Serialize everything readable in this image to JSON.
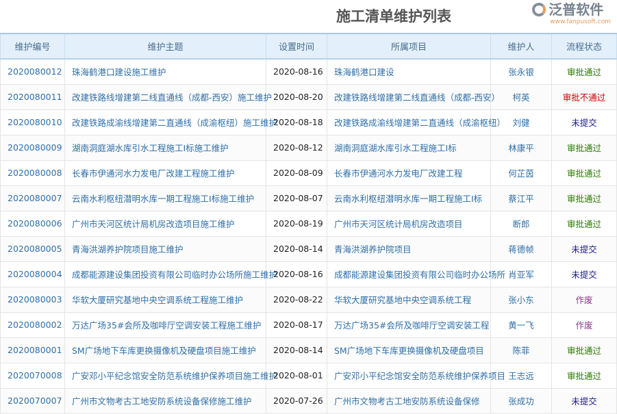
{
  "title": "施工清单维护列表",
  "columns": [
    "维护编号",
    "维护主题",
    "设置时间",
    "所属项目",
    "维护人",
    "流程状态"
  ],
  "status_colors": {
    "审批通过": "#2a7a00",
    "审批不通过": "#d00000",
    "未提交": "#1a1a8c",
    "作废": "#8b3a8b"
  },
  "rows": [
    {
      "id": "2020080012",
      "topic": "珠海鹤港口建设施工维护",
      "date": "2020-08-16",
      "project": "珠海鹤港口建设",
      "person": "张永银",
      "status": "审批通过"
    },
    {
      "id": "2020080011",
      "topic": "改建铁路线增建第二线直通线（成都-西安）施工维护",
      "date": "2020-08-20",
      "project": "改建铁路线增建第二线直通线（成都-西安）",
      "person": "柯英",
      "status": "审批不通过"
    },
    {
      "id": "2020080010",
      "topic": "改建铁路成渝线增建第二直通线（成渝枢纽）施工维护",
      "date": "2020-08-18",
      "project": "改建铁路成渝线增建第二直通线（成渝枢纽）",
      "person": "刘健",
      "status": "未提交"
    },
    {
      "id": "2020080009",
      "topic": "湖南洞庭湖水库引水工程施工I标施工维护",
      "date": "2020-08-12",
      "project": "湖南洞庭湖水库引水工程施工I标",
      "person": "林康平",
      "status": "审批通过"
    },
    {
      "id": "2020080008",
      "topic": "长春市伊通河水力发电厂改建工程施工维护",
      "date": "2020-08-09",
      "project": "长春市伊通河水力发电厂改建工程",
      "person": "何芷茵",
      "status": "审批通过"
    },
    {
      "id": "2020080007",
      "topic": "云南水利枢纽潜明水库一期工程施工I标施工维护",
      "date": "2020-08-07",
      "project": "云南水利枢纽潜明水库一期工程施工I标",
      "person": "蔡江平",
      "status": "审批通过"
    },
    {
      "id": "2020080006",
      "topic": "广州市天河区统计局机房改造项目施工维护",
      "date": "2020-08-19",
      "project": "广州市天河区统计局机房改造项目",
      "person": "断郎",
      "status": "审批通过"
    },
    {
      "id": "2020080005",
      "topic": "青海洪湖养护院项目施工维护",
      "date": "2020-08-14",
      "project": "青海洪湖养护院项目",
      "person": "蒋德帧",
      "status": "未提交"
    },
    {
      "id": "2020080004",
      "topic": "成都能源建设集团投资有限公司临时办公场所施工维护",
      "date": "2020-08-16",
      "project": "成都能源建设集团投资有限公司临时办公场所",
      "person": "肖亚军",
      "status": "未提交"
    },
    {
      "id": "2020080003",
      "topic": "华软大厦研究基地中央空调系统工程施工维护",
      "date": "2020-08-22",
      "project": "华软大厦研究基地中央空调系统工程",
      "person": "张小东",
      "status": "作废"
    },
    {
      "id": "2020080002",
      "topic": "万达广场35#会所及咖啡厅空调安装工程施工维护",
      "date": "2020-08-17",
      "project": "万达广场35#会所及咖啡厅空调安装工程",
      "person": "黄一飞",
      "status": "作废"
    },
    {
      "id": "2020080001",
      "topic": "SM广场地下车库更换摄像机及硬盘项目施工维护",
      "date": "2020-08-14",
      "project": "SM广场地下车库更换摄像机及硬盘项目",
      "person": "陈菲",
      "status": "审批通过"
    },
    {
      "id": "2020070008",
      "topic": "广安邓小平纪念馆安全防范系统维护保养项目施工维护",
      "date": "2020-08-01",
      "project": "广安邓小平纪念馆安全防范系统维护保养项目",
      "person": "王志远",
      "status": "审批通过"
    },
    {
      "id": "2020070007",
      "topic": "广州市文物考古工地安防系统设备保修施工维护",
      "date": "2020-07-26",
      "project": "广州市文物考古工地安防系统设备保修",
      "person": "张成功",
      "status": "未提交"
    }
  ],
  "watermark": {
    "brand": "泛普软件",
    "url": "www.fanpusoft.com"
  }
}
